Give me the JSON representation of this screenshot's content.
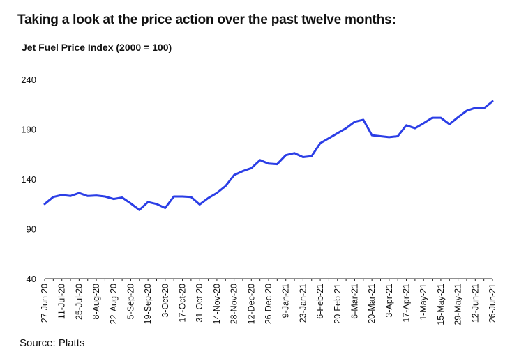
{
  "header": {
    "title": "Taking a look at the price action over the past twelve months:",
    "subtitle": "Jet Fuel Price Index (2000 = 100)"
  },
  "footer": {
    "source": "Source: Platts"
  },
  "chart_data": {
    "type": "line",
    "title": "Taking a look at the price action over the past twelve months:",
    "subtitle": "Jet Fuel Price Index (2000 = 100)",
    "xlabel": "",
    "ylabel": "",
    "ylim": [
      40,
      240
    ],
    "yticks": [
      40,
      90,
      140,
      190,
      240
    ],
    "grid": false,
    "line_color": "#2b3ee6",
    "x_tick_labels": [
      "27-Jun-20",
      "11-Jul-20",
      "25-Jul-20",
      "8-Aug-20",
      "22-Aug-20",
      "5-Sep-20",
      "19-Sep-20",
      "3-Oct-20",
      "17-Oct-20",
      "31-Oct-20",
      "14-Nov-20",
      "28-Nov-20",
      "12-Dec-20",
      "26-Dec-20",
      "9-Jan-21",
      "23-Jan-21",
      "6-Feb-21",
      "20-Feb-21",
      "6-Mar-21",
      "20-Mar-21",
      "3-Apr-21",
      "17-Apr-21",
      "1-May-21",
      "15-May-21",
      "29-May-21",
      "12-Jun-21",
      "26-Jun-21"
    ],
    "series": [
      {
        "values": [
          115,
          122,
          124,
          123,
          126,
          123,
          123.5,
          122.5,
          120,
          121.5,
          115.5,
          109,
          117,
          115,
          111,
          122.5,
          122.5,
          122,
          114.5,
          121,
          126,
          133,
          144,
          148,
          151,
          159,
          155.5,
          155,
          164,
          166,
          162,
          163,
          176,
          181,
          186,
          191,
          197.5,
          199.5,
          184,
          183,
          182,
          183,
          194,
          191,
          196,
          201.5,
          201.5,
          195,
          202,
          208.5,
          211.5,
          211,
          218
        ]
      }
    ]
  }
}
